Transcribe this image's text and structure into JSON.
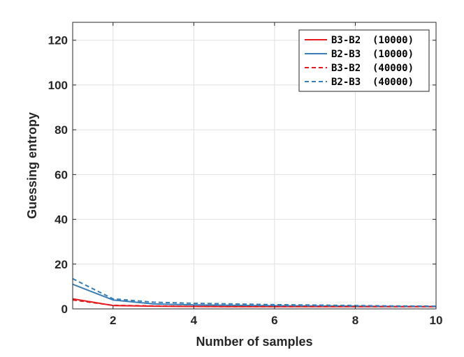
{
  "chart_data": {
    "type": "line",
    "xlabel": "Number of samples",
    "ylabel": "Guessing entropy",
    "xlim": [
      1,
      10
    ],
    "ylim": [
      0,
      128
    ],
    "x_ticks": [
      2,
      4,
      6,
      8,
      10
    ],
    "y_ticks": [
      0,
      20,
      40,
      60,
      80,
      100,
      120
    ],
    "grid": true,
    "legend_position": "top-right",
    "x": [
      1,
      2,
      3,
      4,
      5,
      6,
      7,
      8,
      9,
      10
    ],
    "series": [
      {
        "name": "B3-B2  (10000)",
        "color": "#e41a1c",
        "style": "solid",
        "values": [
          4.5,
          1.5,
          1.2,
          1.1,
          1.0,
          1.0,
          1.0,
          1.0,
          1.0,
          1.0
        ]
      },
      {
        "name": "B2-B3  (10000)",
        "color": "#377eb8",
        "style": "solid",
        "values": [
          11,
          4,
          2.2,
          1.8,
          1.6,
          1.4,
          1.3,
          1.2,
          1.1,
          1.1
        ]
      },
      {
        "name": "B3-B2  (40000)",
        "color": "#e41a1c",
        "style": "dashed",
        "values": [
          4.0,
          1.6,
          1.3,
          1.1,
          1.0,
          1.0,
          1.0,
          1.0,
          1.0,
          1.0
        ]
      },
      {
        "name": "B2-B3  (40000)",
        "color": "#377eb8",
        "style": "dashed",
        "values": [
          13.5,
          4.5,
          3.0,
          2.5,
          2.2,
          1.9,
          1.7,
          1.5,
          1.3,
          1.2
        ]
      }
    ]
  }
}
